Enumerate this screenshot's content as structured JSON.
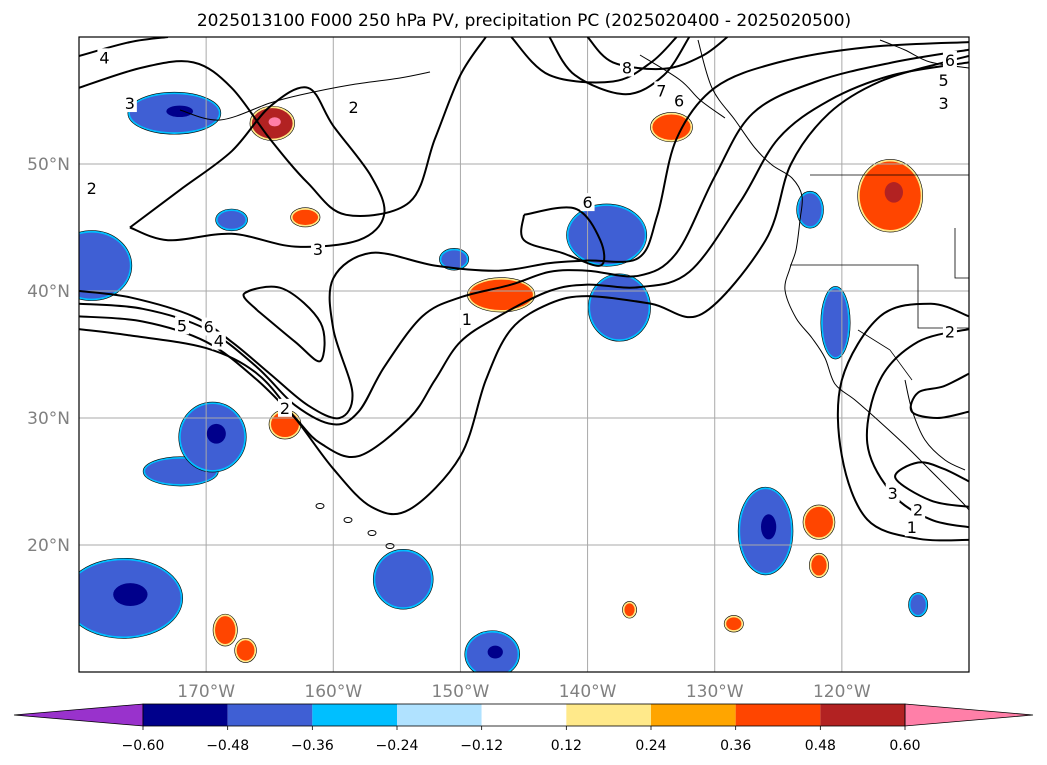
{
  "chart_data": {
    "type": "map-contour",
    "title": "2025013100 F000 250 hPa PV, precipitation PC (2025020400 - 2025020500)",
    "lon_range": [
      -180,
      -110
    ],
    "lat_range": [
      10,
      60
    ],
    "x_ticks": [
      {
        "lon": -170,
        "label": "170°W"
      },
      {
        "lon": -160,
        "label": "160°W"
      },
      {
        "lon": -150,
        "label": "150°W"
      },
      {
        "lon": -140,
        "label": "140°W"
      },
      {
        "lon": -130,
        "label": "130°W"
      },
      {
        "lon": -120,
        "label": "120°W"
      }
    ],
    "y_ticks": [
      {
        "lat": 20,
        "label": "20°N"
      },
      {
        "lat": 30,
        "label": "30°N"
      },
      {
        "lat": 40,
        "label": "40°N"
      },
      {
        "lat": 50,
        "label": "50°N"
      }
    ],
    "grid": true,
    "contour_field": "250 hPa PV",
    "pv_contours": [
      {
        "level": 1,
        "points": [
          [
            -180,
            37
          ],
          [
            -176,
            36.5
          ],
          [
            -170,
            35.5
          ],
          [
            -166,
            33.5
          ],
          [
            -163,
            30
          ],
          [
            -160,
            26
          ],
          [
            -157,
            23
          ],
          [
            -154,
            22.8
          ],
          [
            -150,
            27
          ],
          [
            -148,
            33
          ],
          [
            -146,
            37
          ],
          [
            -143,
            39
          ],
          [
            -140,
            39.6
          ],
          [
            -135,
            39
          ],
          [
            -131,
            38.2
          ],
          [
            -126,
            44
          ],
          [
            -124,
            50
          ],
          [
            -121,
            54
          ],
          [
            -117,
            56.5
          ],
          [
            -112,
            58
          ],
          [
            -110,
            58.5
          ]
        ]
      },
      {
        "level": 2,
        "points": [
          [
            -180,
            38
          ],
          [
            -175,
            37.6
          ],
          [
            -170,
            36
          ],
          [
            -166,
            33
          ],
          [
            -163,
            30
          ],
          [
            -161,
            28
          ],
          [
            -158,
            27
          ],
          [
            -154,
            30
          ],
          [
            -152,
            33
          ],
          [
            -150,
            36
          ],
          [
            -147,
            38
          ],
          [
            -143,
            40
          ],
          [
            -140,
            40.5
          ],
          [
            -136,
            40.3
          ],
          [
            -132,
            41.5
          ],
          [
            -128,
            47
          ],
          [
            -125,
            52
          ],
          [
            -121,
            55
          ],
          [
            -116,
            57
          ],
          [
            -110,
            58
          ]
        ]
      },
      {
        "level": 3,
        "points": [
          [
            -180,
            39
          ],
          [
            -175,
            38.6
          ],
          [
            -170,
            37
          ],
          [
            -166,
            34
          ],
          [
            -163,
            31
          ],
          [
            -160,
            29.5
          ],
          [
            -158,
            30.5
          ],
          [
            -156,
            34
          ],
          [
            -153,
            38
          ],
          [
            -150,
            39.5
          ],
          [
            -146,
            40.5
          ],
          [
            -143,
            41.5
          ],
          [
            -140,
            41.6
          ],
          [
            -136,
            41.2
          ],
          [
            -133,
            43
          ],
          [
            -130,
            49
          ],
          [
            -127,
            54
          ],
          [
            -122,
            56.5
          ],
          [
            -116,
            58
          ],
          [
            -110,
            59
          ]
        ]
      },
      {
        "level": 4,
        "points": [
          [
            -180,
            40
          ],
          [
            -176,
            39.5
          ],
          [
            -171,
            38
          ],
          [
            -168,
            36
          ],
          [
            -165,
            33.5
          ],
          [
            -162,
            31
          ],
          [
            -159.5,
            30
          ],
          [
            -158.5,
            32
          ],
          [
            -160,
            37
          ],
          [
            -160,
            41
          ],
          [
            -157,
            43
          ],
          [
            -152,
            42
          ],
          [
            -147,
            41.6
          ],
          [
            -143,
            42.2
          ],
          [
            -140,
            42.4
          ],
          [
            -136,
            42.6
          ],
          [
            -134.5,
            46
          ],
          [
            -133,
            52
          ],
          [
            -130,
            56
          ],
          [
            -125,
            58
          ],
          [
            -118,
            59.2
          ],
          [
            -110,
            59.6
          ]
        ]
      },
      {
        "level": 5,
        "points": [
          [
            -166,
            38.5
          ],
          [
            -163,
            36
          ],
          [
            -161,
            34.5
          ],
          [
            -161,
            37.5
          ],
          [
            -164,
            40.2
          ],
          [
            -167,
            39.8
          ],
          [
            -166,
            38.5
          ]
        ]
      },
      {
        "level": 6,
        "points": [
          [
            -145,
            46
          ],
          [
            -141,
            46.5
          ],
          [
            -139,
            44
          ],
          [
            -139,
            42
          ],
          [
            -142,
            43
          ],
          [
            -145,
            44
          ],
          [
            -145,
            46
          ]
        ]
      },
      {
        "level": 2,
        "points": [
          [
            -176,
            45
          ],
          [
            -172,
            48
          ],
          [
            -168,
            51
          ],
          [
            -165,
            54.5
          ],
          [
            -162,
            56
          ],
          [
            -160,
            53
          ],
          [
            -157,
            49
          ],
          [
            -156,
            46
          ],
          [
            -158,
            44
          ],
          [
            -163,
            43.5
          ],
          [
            -168,
            44.5
          ],
          [
            -173,
            44
          ],
          [
            -176,
            45
          ]
        ]
      },
      {
        "level": 3,
        "points": [
          [
            -180,
            56
          ],
          [
            -175,
            57.6
          ],
          [
            -171,
            58
          ],
          [
            -168,
            56
          ],
          [
            -165,
            52
          ],
          [
            -162,
            48.5
          ],
          [
            -159,
            46
          ],
          [
            -154,
            47
          ],
          [
            -152,
            52
          ],
          [
            -150,
            57
          ],
          [
            -148,
            60
          ]
        ]
      },
      {
        "level": 4,
        "points": [
          [
            -180,
            58.5
          ],
          [
            -176,
            59.6
          ],
          [
            -173,
            60
          ]
        ]
      },
      {
        "level": 6,
        "points": [
          [
            -143,
            60
          ],
          [
            -141,
            57
          ],
          [
            -137,
            55.5
          ],
          [
            -134,
            57
          ],
          [
            -132,
            60
          ]
        ]
      },
      {
        "level": 7,
        "points": [
          [
            -146,
            60
          ],
          [
            -143,
            57
          ],
          [
            -138,
            56.5
          ],
          [
            -135,
            58
          ],
          [
            -133,
            60
          ]
        ]
      },
      {
        "level": 8,
        "points": [
          [
            -140,
            60
          ],
          [
            -138,
            58
          ],
          [
            -134,
            57.5
          ],
          [
            -131,
            58.5
          ],
          [
            -129,
            60
          ]
        ]
      },
      {
        "level": 1,
        "points": [
          [
            -110,
            38
          ],
          [
            -113,
            39
          ],
          [
            -117,
            38
          ],
          [
            -120,
            33
          ],
          [
            -120,
            27
          ],
          [
            -118,
            22
          ],
          [
            -114,
            20.5
          ],
          [
            -110,
            20.4
          ]
        ]
      },
      {
        "level": 2,
        "points": [
          [
            -110,
            37
          ],
          [
            -114,
            36
          ],
          [
            -117,
            33
          ],
          [
            -118,
            28
          ],
          [
            -116,
            24
          ],
          [
            -113,
            22
          ],
          [
            -110,
            21.4
          ]
        ]
      },
      {
        "level": 3,
        "points": [
          [
            -110,
            23
          ],
          [
            -113,
            23.5
          ],
          [
            -115.8,
            25.3
          ],
          [
            -114,
            26.5
          ],
          [
            -112,
            26
          ],
          [
            -110,
            25
          ]
        ]
      },
      {
        "level": 2,
        "points": [
          [
            -110,
            33.5
          ],
          [
            -112,
            32.5
          ],
          [
            -114,
            32
          ],
          [
            -114.5,
            30.5
          ],
          [
            -112.5,
            30
          ],
          [
            -110,
            30.5
          ]
        ]
      }
    ],
    "contour_labels": [
      {
        "text": "1",
        "lon": -149.5,
        "lat": 37.8
      },
      {
        "text": "2",
        "lon": -163.8,
        "lat": 30.8
      },
      {
        "text": "3",
        "lon": -161.2,
        "lat": 43.3
      },
      {
        "text": "4",
        "lon": -169.0,
        "lat": 36.1
      },
      {
        "text": "5",
        "lon": -171.9,
        "lat": 37.3
      },
      {
        "text": "6",
        "lon": -169.8,
        "lat": 37.2
      },
      {
        "text": "6",
        "lon": -140.0,
        "lat": 47.0
      },
      {
        "text": "2",
        "lon": -158.4,
        "lat": 54.5
      },
      {
        "text": "3",
        "lon": -176.0,
        "lat": 54.8
      },
      {
        "text": "4",
        "lon": -178.0,
        "lat": 58.4
      },
      {
        "text": "2",
        "lon": -179.0,
        "lat": 48.1
      },
      {
        "text": "8",
        "lon": -136.9,
        "lat": 57.6
      },
      {
        "text": "7",
        "lon": -134.2,
        "lat": 55.8
      },
      {
        "text": "6",
        "lon": -132.8,
        "lat": 55.0
      },
      {
        "text": "6",
        "lon": -111.5,
        "lat": 58.2
      },
      {
        "text": "5",
        "lon": -112.0,
        "lat": 56.6
      },
      {
        "text": "3",
        "lon": -112.0,
        "lat": 54.8
      },
      {
        "text": "3",
        "lon": -116.0,
        "lat": 24.1
      },
      {
        "text": "2",
        "lon": -114.0,
        "lat": 22.8
      },
      {
        "text": "1",
        "lon": -114.5,
        "lat": 21.4
      },
      {
        "text": "2",
        "lon": -111.5,
        "lat": 36.8
      }
    ],
    "precip_cells": [
      {
        "lon": -172.5,
        "lat": 54,
        "rlon": 3.5,
        "rlat": 1.5,
        "level": "-0.36",
        "core": "-0.48"
      },
      {
        "lon": -179,
        "lat": 42,
        "rlon": 3,
        "rlat": 2.6,
        "level": "-0.36"
      },
      {
        "lon": -176.5,
        "lat": 15.8,
        "rlon": 4.5,
        "rlat": 3,
        "level": "-0.36",
        "core": "-0.48"
      },
      {
        "lon": -172,
        "lat": 25.8,
        "rlon": 2.8,
        "rlat": 1,
        "level": "-0.36"
      },
      {
        "lon": -169.5,
        "lat": 28.5,
        "rlon": 2.5,
        "rlat": 2.6,
        "level": "-0.36",
        "core": "-0.60"
      },
      {
        "lon": -168,
        "lat": 45.6,
        "rlon": 1.1,
        "rlat": 0.7,
        "level": "-0.36"
      },
      {
        "lon": -150.5,
        "lat": 42.5,
        "rlon": 1,
        "rlat": 0.7,
        "level": "-0.36"
      },
      {
        "lon": -138.5,
        "lat": 44.4,
        "rlon": 3,
        "rlat": 2.3,
        "level": "-0.36"
      },
      {
        "lon": -137.5,
        "lat": 38.7,
        "rlon": 2.3,
        "rlat": 2.5,
        "level": "-0.36"
      },
      {
        "lon": -147.5,
        "lat": 11.4,
        "rlon": 2,
        "rlat": 1.7,
        "level": "-0.36",
        "core": "-0.60"
      },
      {
        "lon": -154.5,
        "lat": 17.3,
        "rlon": 2.2,
        "rlat": 2.2,
        "level": "-0.36"
      },
      {
        "lon": -126,
        "lat": 21.1,
        "rlon": 2,
        "rlat": 3.3,
        "level": "-0.36",
        "core": "-0.60"
      },
      {
        "lon": -122.5,
        "lat": 46.4,
        "rlon": 0.9,
        "rlat": 1.3,
        "level": "-0.36"
      },
      {
        "lon": -120.5,
        "lat": 37.5,
        "rlon": 1,
        "rlat": 2.7,
        "level": "-0.36"
      },
      {
        "lon": -114,
        "lat": 15.3,
        "rlon": 0.6,
        "rlat": 0.8,
        "level": "-0.36"
      },
      {
        "lon": -164.8,
        "lat": 53.2,
        "rlon": 1.6,
        "rlat": 1.2,
        "level": "0.48",
        "core": "0.60"
      },
      {
        "lon": -162.2,
        "lat": 45.8,
        "rlon": 1,
        "rlat": 0.6,
        "level": "0.36"
      },
      {
        "lon": -146.8,
        "lat": 39.7,
        "rlon": 2.5,
        "rlat": 1.2,
        "level": "0.36"
      },
      {
        "lon": -133.4,
        "lat": 52.9,
        "rlon": 1.5,
        "rlat": 1,
        "level": "0.36"
      },
      {
        "lon": -163.8,
        "lat": 29.5,
        "rlon": 1.1,
        "rlat": 1,
        "level": "0.36"
      },
      {
        "lon": -116.2,
        "lat": 47.5,
        "rlon": 2.4,
        "rlat": 2.7,
        "level": "0.36",
        "core": "0.48"
      },
      {
        "lon": -121.8,
        "lat": 21.8,
        "rlon": 1.1,
        "rlat": 1.2,
        "level": "0.36"
      },
      {
        "lon": -121.8,
        "lat": 18.4,
        "rlon": 0.6,
        "rlat": 0.8,
        "level": "0.36"
      },
      {
        "lon": -168.5,
        "lat": 13.3,
        "rlon": 0.8,
        "rlat": 1.1,
        "level": "0.36"
      },
      {
        "lon": -166.9,
        "lat": 11.7,
        "rlon": 0.7,
        "rlat": 0.8,
        "level": "0.36"
      },
      {
        "lon": -136.7,
        "lat": 14.9,
        "rlon": 0.4,
        "rlat": 0.5,
        "level": "0.36"
      },
      {
        "lon": -128.5,
        "lat": 13.8,
        "rlon": 0.6,
        "rlat": 0.5,
        "level": "0.36"
      }
    ],
    "colorbar": {
      "colors": [
        "#9932cc",
        "#00008b",
        "#3f5fd4",
        "#00bfff",
        "#b0e2ff",
        "#ffffff",
        "#ffe98a",
        "#ffa500",
        "#ff4500",
        "#b22222",
        "#ff7fa8"
      ],
      "labels": [
        "−0.60",
        "−0.48",
        "−0.36",
        "−0.24",
        "−0.12",
        "0.12",
        "0.24",
        "0.36",
        "0.48",
        "0.60"
      ]
    },
    "precip_colors": {
      "-0.60": "#00008b",
      "-0.48": "#00008b",
      "-0.36": "#3f5fd4",
      "-0.24": "#00bfff",
      "-0.12": "#b0e2ff",
      "0.12": "#ffe98a",
      "0.24": "#ffa500",
      "0.36": "#ff4500",
      "0.48": "#b22222",
      "0.60": "#ff7fa8"
    }
  }
}
